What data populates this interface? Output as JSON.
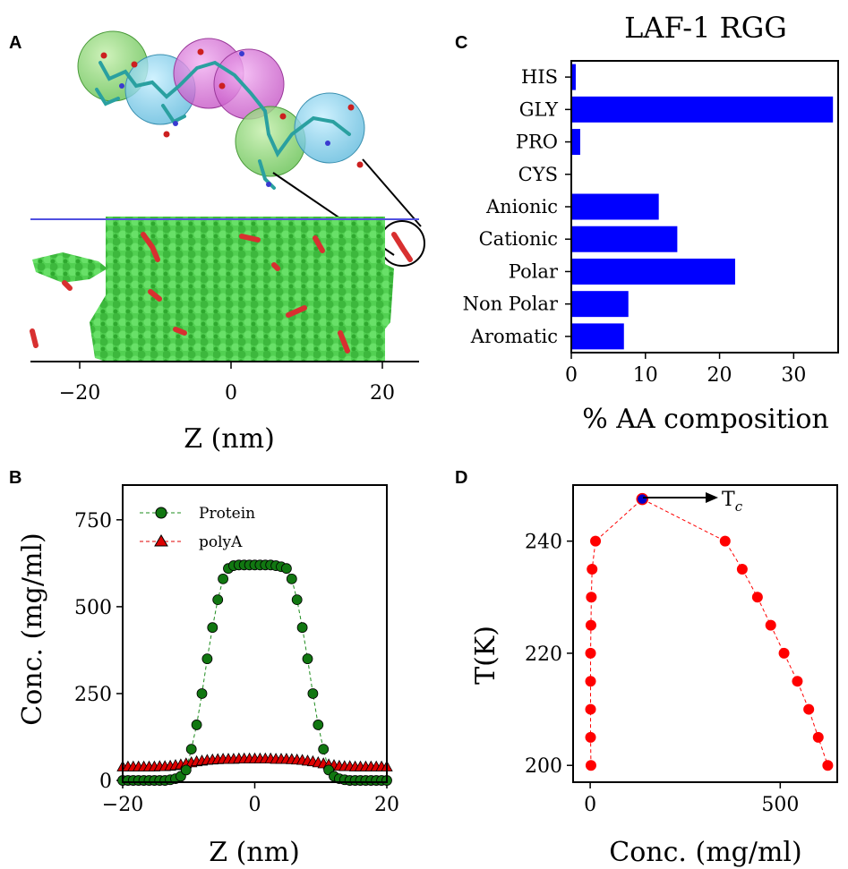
{
  "panels": {
    "a": {
      "label": "A",
      "xlabel": "Z (nm)",
      "xticks": [
        "−20",
        "0",
        "20"
      ]
    },
    "b": {
      "label": "B"
    },
    "c": {
      "label": "C"
    },
    "d": {
      "label": "D"
    }
  },
  "colors": {
    "protein": "#1e8c1e",
    "polyA": "#e00000",
    "bar": "#0000ff",
    "phase": "#ff0000",
    "critical_point": "#0000cc"
  },
  "chart_data": [
    {
      "id": "B",
      "type": "line",
      "xlabel": "Z (nm)",
      "ylabel": "Conc. (mg/ml)",
      "xlim": [
        -20,
        20
      ],
      "ylim": [
        -5,
        850
      ],
      "xticks": [
        -20,
        0,
        20
      ],
      "yticks": [
        0,
        250,
        500,
        750
      ],
      "legend": "top-left",
      "series": [
        {
          "name": "Protein",
          "marker": "circle",
          "x": [
            -20,
            -19.2,
            -18.4,
            -17.6,
            -16.8,
            -16,
            -15.2,
            -14.4,
            -13.6,
            -12.8,
            -12,
            -11.2,
            -10.4,
            -9.6,
            -8.8,
            -8,
            -7.2,
            -6.4,
            -5.6,
            -4.8,
            -4,
            -3.2,
            -2.4,
            -1.6,
            -0.8,
            0,
            0.8,
            1.6,
            2.4,
            3.2,
            4,
            4.8,
            5.6,
            6.4,
            7.2,
            8,
            8.8,
            9.6,
            10.4,
            11.2,
            12,
            12.8,
            13.6,
            14.4,
            15.2,
            16,
            16.8,
            17.6,
            18.4,
            19.2,
            20
          ],
          "y": [
            0,
            0,
            0,
            0,
            0,
            0,
            0,
            0,
            0,
            2,
            5,
            12,
            30,
            90,
            160,
            250,
            350,
            440,
            520,
            580,
            610,
            618,
            620,
            620,
            620,
            620,
            620,
            620,
            620,
            618,
            615,
            610,
            580,
            520,
            440,
            350,
            250,
            160,
            90,
            30,
            12,
            5,
            2,
            0,
            0,
            0,
            0,
            0,
            0,
            0,
            0
          ]
        },
        {
          "name": "polyA",
          "marker": "triangle",
          "x": [
            -20,
            -19.2,
            -18.4,
            -17.6,
            -16.8,
            -16,
            -15.2,
            -14.4,
            -13.6,
            -12.8,
            -12,
            -11.2,
            -10.4,
            -9.6,
            -8.8,
            -8,
            -7.2,
            -6.4,
            -5.6,
            -4.8,
            -4,
            -3.2,
            -2.4,
            -1.6,
            -0.8,
            0,
            0.8,
            1.6,
            2.4,
            3.2,
            4,
            4.8,
            5.6,
            6.4,
            7.2,
            8,
            8.8,
            9.6,
            10.4,
            11.2,
            12,
            12.8,
            13.6,
            14.4,
            15.2,
            16,
            16.8,
            17.6,
            18.4,
            19.2,
            20
          ],
          "y": [
            40,
            40,
            40,
            40,
            40,
            40,
            40,
            41,
            41,
            42,
            44,
            46,
            49,
            52,
            55,
            57,
            59,
            60,
            61,
            62,
            62,
            62,
            63,
            63,
            63,
            63,
            63,
            63,
            63,
            62,
            62,
            62,
            61,
            60,
            59,
            57,
            55,
            52,
            49,
            46,
            44,
            42,
            41,
            41,
            40,
            40,
            40,
            40,
            40,
            40,
            40
          ]
        }
      ]
    },
    {
      "id": "C",
      "type": "bar",
      "orientation": "horizontal",
      "title": "LAF-1 RGG",
      "xlabel": "% AA composition",
      "xlim": [
        0,
        36
      ],
      "xticks": [
        0,
        10,
        20,
        30
      ],
      "categories": [
        "HIS",
        "GLY",
        "PRO",
        "CYS",
        "Anionic",
        "Cationic",
        "Polar",
        "Non Polar",
        "Aromatic"
      ],
      "values": [
        0.6,
        35.3,
        1.2,
        0,
        11.8,
        14.3,
        22.1,
        7.7,
        7.1
      ]
    },
    {
      "id": "D",
      "type": "scatter",
      "xlabel": "Conc. (mg/ml)",
      "ylabel": "T(K)",
      "xlim": [
        -45,
        650
      ],
      "ylim": [
        197,
        250
      ],
      "xticks": [
        0,
        500
      ],
      "yticks": [
        200,
        220,
        240
      ],
      "annotation": "T",
      "annotation_sub": "c",
      "critical_point": {
        "x": 137,
        "y": 247.5
      },
      "left_branch": {
        "x": [
          2,
          1,
          1,
          1,
          1,
          2,
          3,
          5,
          14
        ],
        "y": [
          200,
          205,
          210,
          215,
          220,
          225,
          230,
          235,
          240
        ]
      },
      "right_branch": {
        "x": [
          625,
          600,
          575,
          545,
          510,
          475,
          440,
          400,
          355
        ],
        "y": [
          200,
          205,
          210,
          215,
          220,
          225,
          230,
          235,
          240
        ]
      }
    }
  ]
}
